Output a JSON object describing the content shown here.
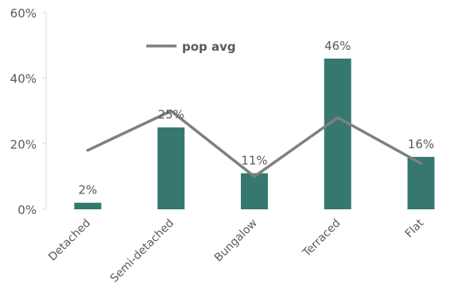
{
  "chart_data": {
    "type": "bar",
    "categories": [
      "Detached",
      "Semi-detached",
      "Bungalow",
      "Terraced",
      "Flat"
    ],
    "series": [
      {
        "type": "bar",
        "values": [
          2,
          25,
          11,
          46,
          16
        ],
        "color": "#367870"
      },
      {
        "type": "line",
        "name": "pop avg",
        "values": [
          18,
          30,
          10,
          28,
          14
        ],
        "color": "#7f7f7f"
      }
    ],
    "data_labels": [
      "2%",
      "25%",
      "11%",
      "46%",
      "16%"
    ],
    "yticks": [
      "0%",
      "20%",
      "40%",
      "60%"
    ],
    "ylim": [
      0,
      60
    ],
    "grid": false,
    "legend": "top-left"
  }
}
